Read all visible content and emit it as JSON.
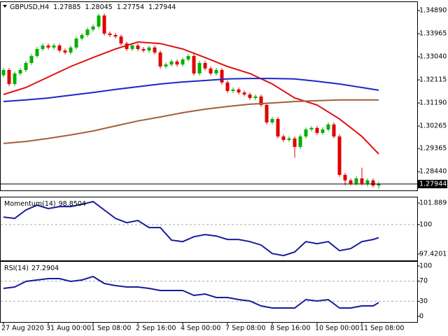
{
  "chart_data": [
    {
      "type": "candlestick",
      "title": "GBPUSD,H4",
      "open": [
        1.323,
        1.3251,
        1.3195,
        1.3237,
        1.3251,
        1.3279,
        1.3307,
        1.3335,
        1.3349,
        1.3341,
        1.3349,
        1.3329,
        1.3321,
        1.3341,
        1.3377,
        1.3391,
        1.3413,
        1.3425,
        1.3469,
        1.3397,
        1.3391,
        1.3385,
        1.3357,
        1.3335,
        1.3349,
        1.3335,
        1.3329,
        1.3341,
        1.3321,
        1.3265,
        1.3273,
        1.3285,
        1.3273,
        1.3293,
        1.3307,
        1.3237,
        1.3279,
        1.3257,
        1.3237,
        1.3251,
        1.3201,
        1.3167,
        1.3173,
        1.3161,
        1.3153,
        1.3139,
        1.3145,
        1.3111,
        1.3041,
        1.3055,
        1.2985,
        1.2971,
        1.2977,
        1.2943,
        1.2985,
        1.3013,
        1.3019,
        1.2999,
        1.3013,
        1.3033,
        1.2985,
        1.2831,
        1.2809,
        1.2797,
        1.2817,
        1.2797,
        1.2809,
        1.27885
      ],
      "high": [
        1.3259,
        1.3259,
        1.3245,
        1.3259,
        1.3287,
        1.3315,
        1.3343,
        1.3357,
        1.3357,
        1.3357,
        1.3357,
        1.3337,
        1.3349,
        1.3385,
        1.3399,
        1.3421,
        1.3433,
        1.3477,
        1.3477,
        1.3405,
        1.3399,
        1.3393,
        1.3365,
        1.3357,
        1.3357,
        1.3343,
        1.3349,
        1.3349,
        1.3329,
        1.3281,
        1.3293,
        1.3293,
        1.3301,
        1.3315,
        1.3315,
        1.3287,
        1.3287,
        1.3265,
        1.3259,
        1.3259,
        1.3209,
        1.3181,
        1.3181,
        1.3169,
        1.3161,
        1.3153,
        1.3153,
        1.3119,
        1.3063,
        1.3063,
        1.2993,
        1.2985,
        1.2985,
        1.2993,
        1.3021,
        1.3027,
        1.3027,
        1.3021,
        1.3041,
        1.3041,
        1.2993,
        1.2839,
        1.2817,
        1.2825,
        1.286,
        1.2817,
        1.2817,
        1.28045
      ],
      "low": [
        1.3222,
        1.3187,
        1.3187,
        1.3229,
        1.3243,
        1.3271,
        1.3299,
        1.3327,
        1.3333,
        1.3333,
        1.3321,
        1.3313,
        1.3313,
        1.3333,
        1.3369,
        1.3383,
        1.3405,
        1.3417,
        1.3389,
        1.3383,
        1.3377,
        1.3349,
        1.3327,
        1.3327,
        1.3327,
        1.3321,
        1.3321,
        1.3313,
        1.3257,
        1.3257,
        1.3265,
        1.3265,
        1.3265,
        1.3285,
        1.3229,
        1.3229,
        1.3249,
        1.3229,
        1.3229,
        1.3193,
        1.3159,
        1.3159,
        1.3153,
        1.3145,
        1.3131,
        1.3131,
        1.3103,
        1.3033,
        1.3033,
        1.2977,
        1.2963,
        1.2963,
        1.29,
        1.2935,
        1.2977,
        1.3005,
        1.2991,
        1.2991,
        1.3005,
        1.2977,
        1.2823,
        1.279,
        1.2789,
        1.2789,
        1.2789,
        1.2785,
        1.2781,
        1.27754
      ],
      "close": [
        1.3251,
        1.3195,
        1.3237,
        1.3251,
        1.3279,
        1.3307,
        1.3335,
        1.3349,
        1.3341,
        1.3349,
        1.3329,
        1.3321,
        1.3341,
        1.3377,
        1.3391,
        1.3413,
        1.3425,
        1.3469,
        1.3397,
        1.3391,
        1.3385,
        1.3357,
        1.3335,
        1.3349,
        1.3335,
        1.3329,
        1.3341,
        1.3321,
        1.3265,
        1.3273,
        1.3285,
        1.3273,
        1.3293,
        1.3307,
        1.3237,
        1.3279,
        1.3257,
        1.3237,
        1.3251,
        1.3201,
        1.3167,
        1.3173,
        1.3161,
        1.3153,
        1.3139,
        1.3145,
        1.3111,
        1.3041,
        1.3055,
        1.2985,
        1.2971,
        1.2977,
        1.2943,
        1.2985,
        1.3013,
        1.3019,
        1.2999,
        1.3013,
        1.3033,
        1.2985,
        1.2831,
        1.2809,
        1.2797,
        1.2817,
        1.2797,
        1.2809,
        1.27885,
        1.27944
      ],
      "up_color": "#00b000",
      "down_color": "#e00000",
      "series": [
        {
          "color": "#e01010",
          "x": [
            0,
            4,
            8,
            12,
            16,
            20,
            24,
            28,
            32,
            36,
            40,
            44,
            48,
            52,
            56,
            60,
            64,
            67
          ],
          "values": [
            1.3153,
            1.3181,
            1.3223,
            1.3265,
            1.3301,
            1.3335,
            1.3363,
            1.3357,
            1.3335,
            1.3301,
            1.3265,
            1.3237,
            1.3195,
            1.3139,
            1.3111,
            1.3055,
            1.2985,
            1.2915
          ]
        },
        {
          "color": "#1a28c8",
          "x": [
            0,
            4,
            8,
            12,
            16,
            20,
            24,
            28,
            32,
            36,
            40,
            44,
            48,
            52,
            56,
            60,
            64,
            67
          ],
          "values": [
            1.3125,
            1.3131,
            1.3139,
            1.315,
            1.3161,
            1.3173,
            1.3184,
            1.3195,
            1.3203,
            1.3209,
            1.3215,
            1.3217,
            1.3217,
            1.3215,
            1.3206,
            1.3195,
            1.3181,
            1.317
          ]
        },
        {
          "color": "#a0603a",
          "x": [
            0,
            4,
            8,
            12,
            16,
            20,
            24,
            28,
            32,
            36,
            40,
            44,
            48,
            52,
            56,
            60,
            64,
            67
          ],
          "values": [
            1.2957,
            1.2965,
            1.2977,
            1.2991,
            1.3007,
            1.3027,
            1.3047,
            1.3063,
            1.308,
            1.3094,
            1.3105,
            1.3114,
            1.3119,
            1.3125,
            1.3128,
            1.3131,
            1.3131,
            1.3131
          ]
        }
      ],
      "ylim": [
        1.2769,
        1.352
      ],
      "yticks": [
        {
          "value": 1.3489,
          "label": "1.34890"
        },
        1.33965,
        {
          "value": 1.3304,
          "label": "1.33040"
        },
        1.32115,
        {
          "value": 1.3119,
          "label": "1.31190"
        },
        1.30265,
        1.29365,
        {
          "value": 1.2844,
          "label": "1.28440"
        }
      ],
      "xticks": [
        {
          "value": 0,
          "label": "27 Aug 2020"
        },
        {
          "value": 8,
          "label": "31 Aug 00:00"
        },
        {
          "value": 16,
          "label": "1 Sep 08:00"
        },
        {
          "value": 24,
          "label": "2 Sep 16:00"
        },
        {
          "value": 32,
          "label": "4 Sep 00:00"
        },
        {
          "value": 40,
          "label": "7 Sep 08:00"
        },
        {
          "value": 48,
          "label": "8 Sep 16:00"
        },
        {
          "value": 56,
          "label": "10 Sep 00:00"
        },
        {
          "value": 64,
          "label": "11 Sep 08:00"
        }
      ]
    },
    {
      "type": "line",
      "title": "Momentum(14)",
      "series": [
        {
          "color": "#1a1a9c",
          "x": [
            0,
            2,
            4,
            6,
            8,
            10,
            12,
            14,
            16,
            18,
            20,
            22,
            24,
            26,
            28,
            30,
            32,
            34,
            36,
            38,
            40,
            42,
            44,
            46,
            48,
            50,
            52,
            54,
            56,
            58,
            60,
            62,
            64,
            66,
            67
          ],
          "values": [
            100.66,
            100.54,
            101.28,
            101.7,
            101.4,
            101.58,
            101.58,
            101.77,
            102.01,
            101.28,
            100.54,
            100.17,
            100.36,
            99.74,
            99.74,
            98.64,
            98.51,
            98.94,
            99.13,
            99.0,
            98.7,
            98.7,
            98.51,
            98.21,
            97.47,
            97.29,
            97.6,
            98.51,
            98.33,
            98.51,
            97.72,
            97.9,
            98.51,
            98.7,
            98.8504
          ]
        }
      ],
      "ylim": [
        96.868,
        102.318
      ],
      "yticks": [
        101.889,
        100,
        97.4201
      ],
      "levels": [
        100
      ]
    },
    {
      "type": "line",
      "title": "RSI(14)",
      "series": [
        {
          "color": "#1a1a9c",
          "x": [
            0,
            2,
            4,
            6,
            8,
            10,
            12,
            14,
            16,
            18,
            20,
            22,
            24,
            26,
            28,
            30,
            32,
            34,
            36,
            38,
            40,
            42,
            44,
            46,
            48,
            50,
            52,
            54,
            56,
            58,
            60,
            62,
            64,
            66,
            67
          ],
          "values": [
            55.6,
            58.3,
            69.4,
            72.2,
            75.0,
            75.0,
            69.4,
            72.2,
            79.2,
            65.3,
            61.1,
            58.3,
            58.3,
            55.6,
            51.4,
            51.4,
            51.4,
            41.7,
            44.4,
            37.5,
            37.5,
            33.3,
            30.6,
            20.8,
            16.7,
            16.7,
            16.7,
            33.3,
            30.6,
            33.3,
            16.7,
            16.7,
            20.8,
            20.8,
            27.2904
          ]
        }
      ],
      "ylim": [
        -11.1,
        106.9
      ],
      "yticks": [
        100,
        70,
        30,
        0
      ],
      "levels": [
        70,
        30
      ]
    }
  ]
}
